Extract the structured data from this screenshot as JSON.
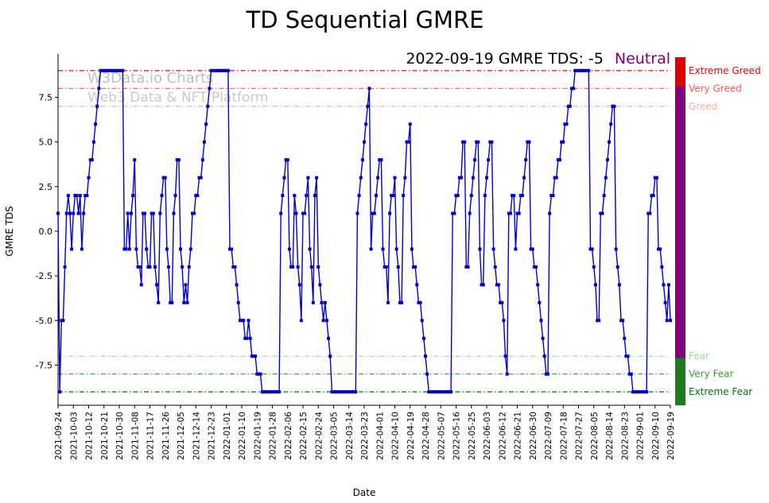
{
  "title": "TD Sequential GMRE",
  "annotation": {
    "text": "2022-09-19 GMRE TDS: -5",
    "status": "Neutral",
    "status_color": "#800080"
  },
  "watermark": {
    "line1": "W3Data.io Charts",
    "line2": "Web3 Data & NFT Platform"
  },
  "chart_data": {
    "type": "line",
    "title": "TD Sequential GMRE",
    "xlabel": "Date",
    "ylabel": "GMRE TDS",
    "ylim": [
      -9.75,
      9.75
    ],
    "yticks": [
      -7.5,
      -5.0,
      -2.5,
      0.0,
      2.5,
      5.0,
      7.5
    ],
    "x_start_date": "2021-09-24",
    "x_total_days": 360,
    "x_tick_step_days": 9,
    "x_tick_labels": [
      "2021-09-24",
      "2021-10-03",
      "2021-10-12",
      "2021-10-21",
      "2021-10-30",
      "2021-11-08",
      "2021-11-17",
      "2021-11-26",
      "2021-12-05",
      "2021-12-14",
      "2021-12-23",
      "2022-01-01",
      "2022-01-10",
      "2022-01-19",
      "2022-01-28",
      "2022-02-06",
      "2022-02-15",
      "2022-02-24",
      "2022-03-05",
      "2022-03-14",
      "2022-03-23",
      "2022-04-01",
      "2022-04-10",
      "2022-04-19",
      "2022-04-28",
      "2022-05-07",
      "2022-05-16",
      "2022-05-25",
      "2022-06-03",
      "2022-06-12",
      "2022-06-21",
      "2022-06-30",
      "2022-07-09",
      "2022-07-18",
      "2022-07-27",
      "2022-08-05",
      "2022-08-14",
      "2022-08-23",
      "2022-09-01",
      "2022-09-10",
      "2022-09-19"
    ],
    "series": [
      {
        "name": "GMRE TDS",
        "color": "#0000cc",
        "marker": "square",
        "frequency": "daily",
        "values": [
          1,
          -9,
          -5,
          -5,
          -2,
          1,
          2,
          1,
          -1,
          1,
          2,
          2,
          1,
          2,
          -1,
          1,
          2,
          2,
          3,
          4,
          4,
          5,
          6,
          7,
          8,
          9,
          9,
          9,
          9,
          9,
          9,
          9,
          9,
          9,
          9,
          9,
          9,
          9,
          9,
          -1,
          -1,
          1,
          -1,
          1,
          2,
          4,
          -1,
          -2,
          -2,
          -3,
          1,
          1,
          -1,
          -2,
          -2,
          1,
          1,
          -2,
          -3,
          -4,
          1,
          2,
          3,
          3,
          -1,
          -2,
          -4,
          -4,
          1,
          2,
          4,
          4,
          -1,
          -2,
          -4,
          -3,
          -4,
          -2,
          -1,
          1,
          1,
          2,
          2,
          3,
          3,
          4,
          5,
          6,
          7,
          8,
          9,
          9,
          9,
          9,
          9,
          9,
          9,
          9,
          9,
          9,
          9,
          -1,
          -1,
          -2,
          -2,
          -3,
          -4,
          -5,
          -5,
          -5,
          -6,
          -6,
          -5,
          -6,
          -7,
          -7,
          -7,
          -8,
          -8,
          -8,
          -9,
          -9,
          -9,
          -9,
          -9,
          -9,
          -9,
          -9,
          -9,
          -9,
          -9,
          1,
          2,
          3,
          4,
          4,
          -1,
          -2,
          -2,
          2,
          1,
          -2,
          -3,
          -5,
          1,
          1,
          2,
          3,
          -1,
          -2,
          -4,
          2,
          3,
          -2,
          -3,
          -4,
          -5,
          -4,
          -5,
          -6,
          -7,
          -9,
          -9,
          -9,
          -9,
          -9,
          -9,
          -9,
          -9,
          -9,
          -9,
          -9,
          -9,
          -9,
          -9,
          -9,
          1,
          2,
          3,
          4,
          5,
          6,
          7,
          8,
          -1,
          1,
          1,
          2,
          3,
          4,
          4,
          -1,
          -2,
          -2,
          -4,
          1,
          2,
          2,
          3,
          -1,
          -2,
          -4,
          -4,
          2,
          3,
          5,
          5,
          6,
          -1,
          -2,
          -2,
          -3,
          -4,
          -4,
          -5,
          -6,
          -7,
          -8,
          -9,
          -9,
          -9,
          -9,
          -9,
          -9,
          -9,
          -9,
          -9,
          -9,
          -9,
          -9,
          -9,
          -9,
          1,
          1,
          2,
          2,
          3,
          3,
          5,
          5,
          -2,
          -2,
          1,
          2,
          3,
          4,
          5,
          5,
          -1,
          -3,
          -3,
          2,
          3,
          4,
          5,
          5,
          -1,
          -2,
          -3,
          -3,
          -4,
          -4,
          -5,
          -7,
          -8,
          1,
          1,
          2,
          2,
          -1,
          1,
          1,
          2,
          2,
          3,
          4,
          5,
          5,
          -1,
          -1,
          -2,
          -2,
          -3,
          -4,
          -5,
          -6,
          -7,
          -8,
          -8,
          1,
          2,
          2,
          3,
          3,
          4,
          4,
          5,
          5,
          6,
          6,
          7,
          7,
          8,
          8,
          9,
          9,
          9,
          9,
          9,
          9,
          9,
          9,
          9,
          -1,
          -1,
          -2,
          -3,
          -5,
          -5,
          1,
          1,
          2,
          3,
          4,
          5,
          6,
          7,
          7,
          -1,
          -2,
          -3,
          -5,
          -5,
          -6,
          -7,
          -7,
          -8,
          -8,
          -9,
          -9,
          -9,
          -9,
          -9,
          -9,
          -9,
          -9,
          -9,
          1,
          1,
          2,
          2,
          3,
          3,
          -1,
          -1,
          -2,
          -3,
          -4,
          -5,
          -3,
          -5
        ]
      }
    ],
    "thresholds": [
      {
        "label": "Extreme Greed",
        "value": 9,
        "color": "#ee0000"
      },
      {
        "label": "Very Greed",
        "value": 8,
        "color": "#ff5555"
      },
      {
        "label": "Greed",
        "value": 7,
        "color": "#ffaaaa"
      },
      {
        "label": "Fear",
        "value": -7,
        "color": "#9ddc9d"
      },
      {
        "label": "Very Fear",
        "value": -8,
        "color": "#33a033"
      },
      {
        "label": "Extreme Fear",
        "value": -9,
        "color": "#007700"
      }
    ],
    "colorbar": [
      {
        "color": "#dd0000",
        "from": 9.75,
        "to": 8.1
      },
      {
        "color": "#800080",
        "from": 8.1,
        "to": -7.1
      },
      {
        "color": "#1d7a1d",
        "from": -7.1,
        "to": -9.75
      }
    ],
    "legend": "none",
    "grid": false
  }
}
